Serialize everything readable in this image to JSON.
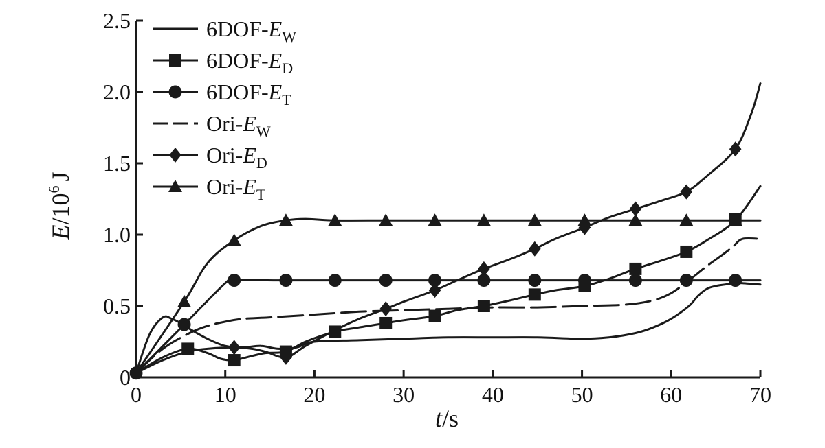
{
  "chart_data": {
    "type": "line",
    "title": "",
    "xlabel": {
      "var": "t",
      "sep": "/",
      "unit": "s"
    },
    "ylabel": {
      "var": "E",
      "sep": "/",
      "unit_base": "10",
      "unit_exp": "6",
      "unit_tail": "J"
    },
    "xlim": [
      0,
      70
    ],
    "ylim": [
      0,
      2.5
    ],
    "xticks": [
      "0",
      "10",
      "20",
      "30",
      "40",
      "50",
      "60",
      "70"
    ],
    "yticks": [
      "0",
      "0.5",
      "1.0",
      "1.5",
      "2.0",
      "2.5"
    ],
    "grid": false,
    "legend_position": "top-left",
    "series": [
      {
        "name": {
          "prefix": "6DOF-",
          "sym": "E",
          "sub": "W"
        },
        "style": "solid",
        "marker": "none",
        "x": [
          0,
          1.5,
          3,
          4,
          5,
          6,
          8,
          10,
          12,
          14,
          16,
          18,
          20,
          25,
          30,
          35,
          40,
          45,
          50,
          53,
          56,
          58,
          60,
          62,
          63,
          64,
          65,
          66,
          67,
          68,
          70
        ],
        "y": [
          0.03,
          0.3,
          0.42,
          0.41,
          0.38,
          0.34,
          0.27,
          0.22,
          0.21,
          0.22,
          0.2,
          0.21,
          0.25,
          0.26,
          0.27,
          0.28,
          0.28,
          0.28,
          0.27,
          0.28,
          0.31,
          0.35,
          0.41,
          0.5,
          0.57,
          0.62,
          0.64,
          0.65,
          0.66,
          0.66,
          0.65
        ]
      },
      {
        "name": {
          "prefix": "6DOF-",
          "sym": "E",
          "sub": "D"
        },
        "style": "solid",
        "marker": "square",
        "x": [
          0,
          3,
          5.8,
          8,
          9.5,
          11,
          13,
          14.5,
          16.8,
          19,
          22.3,
          25,
          28,
          30,
          33.5,
          36,
          39,
          42,
          44.7,
          47,
          50.3,
          53,
          56,
          59,
          61.7,
          64,
          67.2,
          70
        ],
        "y": [
          0.03,
          0.14,
          0.2,
          0.17,
          0.13,
          0.12,
          0.15,
          0.17,
          0.18,
          0.25,
          0.32,
          0.35,
          0.38,
          0.4,
          0.43,
          0.47,
          0.5,
          0.54,
          0.58,
          0.61,
          0.64,
          0.69,
          0.76,
          0.82,
          0.88,
          0.96,
          1.1,
          1.34
        ]
      },
      {
        "name": {
          "prefix": "6DOF-",
          "sym": "E",
          "sub": "T"
        },
        "style": "solid",
        "marker": "circle",
        "x": [
          0,
          5.4,
          10,
          11,
          16.8,
          22.3,
          28,
          33.5,
          39,
          44.7,
          50.3,
          56,
          61.7,
          67.2,
          70
        ],
        "y": [
          0.03,
          0.37,
          0.66,
          0.68,
          0.68,
          0.68,
          0.68,
          0.68,
          0.68,
          0.68,
          0.68,
          0.68,
          0.68,
          0.68,
          0.68
        ]
      },
      {
        "name": {
          "prefix": "Ori-",
          "sym": "E",
          "sub": "W"
        },
        "style": "dashed",
        "marker": "none",
        "x": [
          0,
          3,
          6,
          8,
          10,
          12,
          15,
          20,
          25,
          30,
          35,
          40,
          45,
          50,
          55,
          58,
          60,
          62,
          64,
          66,
          67,
          68,
          70
        ],
        "y": [
          0.03,
          0.2,
          0.31,
          0.36,
          0.39,
          0.41,
          0.42,
          0.44,
          0.46,
          0.47,
          0.48,
          0.49,
          0.49,
          0.5,
          0.51,
          0.54,
          0.59,
          0.68,
          0.78,
          0.87,
          0.92,
          0.97,
          0.97
        ]
      },
      {
        "name": {
          "prefix": "Ori-",
          "sym": "E",
          "sub": "D"
        },
        "style": "solid",
        "marker": "diamond",
        "x": [
          0,
          3,
          5.8,
          8,
          11,
          13,
          14.5,
          16.8,
          19,
          22.3,
          25,
          28,
          30,
          33.5,
          36,
          39,
          42,
          44.7,
          47,
          50.3,
          53,
          56,
          59,
          61.7,
          64,
          67.2,
          69,
          70
        ],
        "y": [
          0.03,
          0.12,
          0.18,
          0.2,
          0.21,
          0.2,
          0.18,
          0.14,
          0.22,
          0.33,
          0.41,
          0.48,
          0.53,
          0.61,
          0.68,
          0.76,
          0.83,
          0.9,
          0.97,
          1.05,
          1.12,
          1.18,
          1.24,
          1.3,
          1.41,
          1.6,
          1.85,
          2.06
        ]
      },
      {
        "name": {
          "prefix": "Ori-",
          "sym": "E",
          "sub": "T"
        },
        "style": "solid",
        "marker": "triangle",
        "x": [
          0,
          5.4,
          8,
          11,
          14,
          16.8,
          19,
          22.3,
          28,
          33.5,
          39,
          44.7,
          50.3,
          56,
          61.7,
          67.2,
          70
        ],
        "y": [
          0.03,
          0.53,
          0.8,
          0.96,
          1.06,
          1.1,
          1.11,
          1.1,
          1.1,
          1.1,
          1.1,
          1.1,
          1.1,
          1.1,
          1.1,
          1.1,
          1.1
        ]
      }
    ],
    "markers": {
      "square": [
        [
          5.8,
          0.2
        ],
        [
          11,
          0.12
        ],
        [
          16.8,
          0.18
        ],
        [
          22.3,
          0.32
        ],
        [
          28,
          0.38
        ],
        [
          33.5,
          0.43
        ],
        [
          39,
          0.5
        ],
        [
          44.7,
          0.58
        ],
        [
          50.3,
          0.64
        ],
        [
          56,
          0.76
        ],
        [
          61.7,
          0.88
        ],
        [
          67.2,
          1.11
        ]
      ],
      "circle": [
        [
          0,
          0.03
        ],
        [
          5.4,
          0.37
        ],
        [
          11,
          0.68
        ],
        [
          16.8,
          0.68
        ],
        [
          22.3,
          0.68
        ],
        [
          28,
          0.68
        ],
        [
          33.5,
          0.68
        ],
        [
          39,
          0.68
        ],
        [
          44.7,
          0.68
        ],
        [
          50.3,
          0.68
        ],
        [
          56,
          0.68
        ],
        [
          61.7,
          0.68
        ],
        [
          67.2,
          0.68
        ]
      ],
      "diamond": [
        [
          11,
          0.21
        ],
        [
          16.8,
          0.14
        ],
        [
          28,
          0.48
        ],
        [
          33.5,
          0.61
        ],
        [
          39,
          0.76
        ],
        [
          44.7,
          0.9
        ],
        [
          50.3,
          1.05
        ],
        [
          56,
          1.18
        ],
        [
          61.7,
          1.3
        ],
        [
          67.2,
          1.6
        ]
      ],
      "triangle": [
        [
          5.4,
          0.53
        ],
        [
          11,
          0.96
        ],
        [
          16.8,
          1.1
        ],
        [
          22.3,
          1.1
        ],
        [
          28,
          1.1
        ],
        [
          33.5,
          1.1
        ],
        [
          39,
          1.1
        ],
        [
          44.7,
          1.1
        ],
        [
          50.3,
          1.1
        ],
        [
          56,
          1.1
        ],
        [
          61.7,
          1.1
        ],
        [
          67.2,
          1.1
        ]
      ]
    },
    "colors": {
      "ink": "#1a1a1a",
      "background": "#ffffff"
    }
  }
}
